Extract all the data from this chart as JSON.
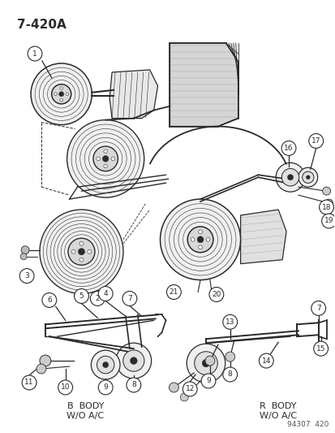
{
  "title": "7-420A",
  "bg_color": "#ffffff",
  "line_color": "#2a2a2a",
  "label_b_body": "B  BODY",
  "label_b_body2": "W/O A/C",
  "label_r_body": "R  BODY",
  "label_r_body2": "W/O A/C",
  "watermark": "94307  420",
  "fig_width": 4.14,
  "fig_height": 5.33,
  "dpi": 100
}
